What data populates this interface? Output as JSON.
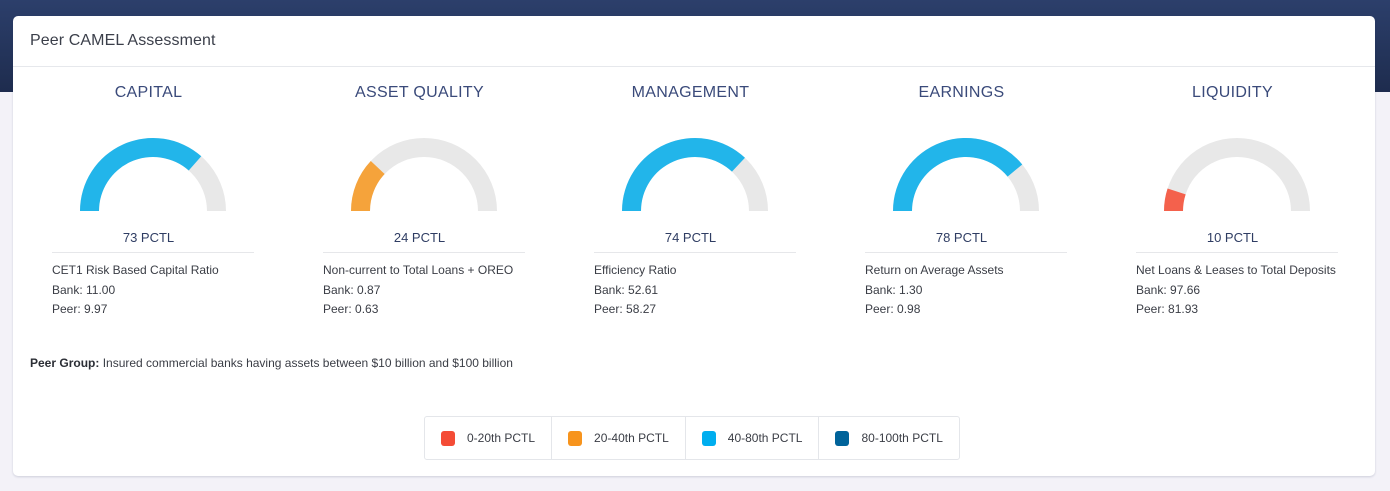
{
  "card": {
    "title": "Peer CAMEL Assessment"
  },
  "metrics": [
    {
      "title": "CAPITAL",
      "percentile": 73,
      "pctl_label": "73 PCTL",
      "measure": "CET1 Risk Based Capital Ratio",
      "bank": "Bank: 11.00",
      "peer": "Peer: 9.97",
      "color": "#22b5ea"
    },
    {
      "title": "ASSET QUALITY",
      "percentile": 24,
      "pctl_label": "24 PCTL",
      "measure": "Non-current to Total Loans + OREO",
      "bank": "Bank: 0.87",
      "peer": "Peer: 0.63",
      "color": "#f5a33b"
    },
    {
      "title": "MANAGEMENT",
      "percentile": 74,
      "pctl_label": "74 PCTL",
      "measure": "Efficiency Ratio",
      "bank": "Bank: 52.61",
      "peer": "Peer: 58.27",
      "color": "#22b5ea"
    },
    {
      "title": "EARNINGS",
      "percentile": 78,
      "pctl_label": "78 PCTL",
      "measure": "Return on Average Assets",
      "bank": "Bank: 1.30",
      "peer": "Peer: 0.98",
      "color": "#22b5ea"
    },
    {
      "title": "LIQUIDITY",
      "percentile": 10,
      "pctl_label": "10 PCTL",
      "measure": "Net Loans & Leases to Total Deposits",
      "bank": "Bank: 97.66",
      "peer": "Peer: 81.93",
      "color": "#f4614c"
    }
  ],
  "gauge_track_color": "#e8e8e8",
  "peer_group": {
    "label": "Peer Group:",
    "text": " Insured commercial banks having assets between $10 billion and $100 billion"
  },
  "legend": [
    {
      "label": "0-20th PCTL",
      "color": "#f44c36"
    },
    {
      "label": "20-40th PCTL",
      "color": "#f7941d"
    },
    {
      "label": "40-80th PCTL",
      "color": "#00aeef"
    },
    {
      "label": "80-100th PCTL",
      "color": "#00639a"
    }
  ]
}
